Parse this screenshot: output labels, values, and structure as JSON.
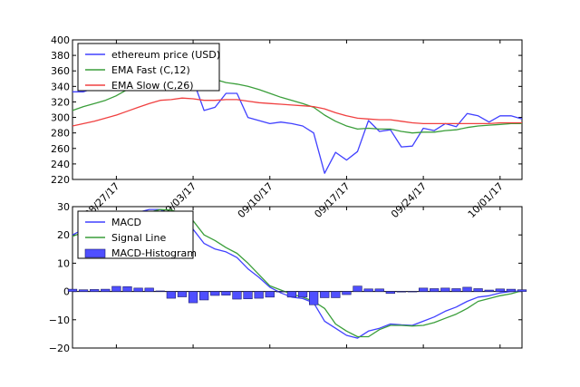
{
  "chart_data": [
    {
      "type": "line",
      "x": [
        "08/23/17",
        "08/24/17",
        "08/25/17",
        "08/26/17",
        "08/27/17",
        "08/28/17",
        "08/29/17",
        "08/30/17",
        "08/31/17",
        "09/01/17",
        "09/02/17",
        "09/03/17",
        "09/04/17",
        "09/05/17",
        "09/06/17",
        "09/07/17",
        "09/08/17",
        "09/09/17",
        "09/10/17",
        "09/11/17",
        "09/12/17",
        "09/13/17",
        "09/14/17",
        "09/15/17",
        "09/16/17",
        "09/17/17",
        "09/18/17",
        "09/19/17",
        "09/20/17",
        "09/21/17",
        "09/22/17",
        "09/23/17",
        "09/24/17",
        "09/25/17",
        "09/26/17",
        "09/27/17",
        "09/28/17",
        "09/29/17",
        "09/30/17",
        "10/01/17",
        "10/02/17",
        "10/03/17"
      ],
      "x_ticks": [
        "08/27/17",
        "09/03/17",
        "09/10/17",
        "09/17/17",
        "09/24/17",
        "10/01/17"
      ],
      "ylim": [
        220,
        400
      ],
      "y_ticks": [
        220,
        240,
        260,
        280,
        300,
        320,
        340,
        360,
        380,
        400
      ],
      "grid": false,
      "legend_position": "top-left",
      "series": [
        {
          "name": "ethereum price (USD)",
          "color": "#4040ff",
          "values": [
            333,
            333,
            338,
            345,
            348,
            352,
            360,
            372,
            383,
            382,
            378,
            348,
            309,
            313,
            331,
            331,
            300,
            296,
            292,
            294,
            292,
            289,
            280,
            228,
            255,
            245,
            256,
            296,
            282,
            284,
            262,
            263,
            286,
            283,
            292,
            288,
            305,
            302,
            294,
            302,
            302,
            298
          ]
        },
        {
          "name": "EMA Fast (C,12)",
          "color": "#3a9e3a",
          "values": [
            309,
            314,
            318,
            322,
            328,
            336,
            344,
            352,
            360,
            363,
            365,
            362,
            355,
            349,
            345,
            343,
            340,
            336,
            331,
            326,
            322,
            318,
            313,
            303,
            295,
            289,
            285,
            286,
            285,
            285,
            282,
            280,
            281,
            281,
            283,
            284,
            287,
            289,
            290,
            291,
            292,
            292
          ]
        },
        {
          "name": "EMA Slow (C,26)",
          "color": "#f04040",
          "values": [
            289,
            292,
            295,
            299,
            303,
            308,
            313,
            318,
            322,
            323,
            325,
            324,
            322,
            322,
            323,
            323,
            321,
            319,
            318,
            317,
            316,
            315,
            314,
            311,
            306,
            302,
            299,
            298,
            297,
            297,
            295,
            293,
            292,
            292,
            292,
            292,
            292,
            292,
            292,
            293,
            293,
            293
          ]
        }
      ]
    },
    {
      "type": "line",
      "ylim": [
        -20,
        30
      ],
      "y_ticks": [
        -20,
        -10,
        0,
        10,
        20,
        30
      ],
      "y_tick_labels": [
        "−20",
        "−10",
        "0",
        "10",
        "20",
        "30"
      ],
      "grid": false,
      "legend_position": "top-left",
      "series": [
        {
          "name": "MACD",
          "color": "#4040ff",
          "values": [
            20,
            22,
            23,
            24,
            25,
            26,
            28,
            29,
            29,
            27,
            25,
            22,
            17,
            15,
            14,
            12,
            8,
            5,
            1.5,
            -0.5,
            -2,
            -2.5,
            -4,
            -10.5,
            -13,
            -15.5,
            -16.5,
            -14,
            -13,
            -11.5,
            -11.8,
            -12,
            -10.5,
            -9,
            -7,
            -5.5,
            -3.5,
            -2,
            -1.5,
            -0.5,
            0,
            0.2
          ]
        },
        {
          "name": "Signal Line",
          "color": "#3a9e3a",
          "values": [
            19.5,
            21,
            22.5,
            23.5,
            24.5,
            25.5,
            27,
            28,
            29,
            28.8,
            27.5,
            25,
            20,
            18,
            15.5,
            13.5,
            10,
            6,
            2,
            0.5,
            -1,
            -2,
            -3.5,
            -6,
            -11.5,
            -14,
            -16,
            -16,
            -13.5,
            -12,
            -12,
            -12.2,
            -12,
            -11,
            -9.5,
            -8,
            -6,
            -3.5,
            -2.5,
            -1.5,
            -0.8,
            0.3
          ]
        },
        {
          "name": "MACD-Histogram",
          "color": "#4f4fff",
          "type": "bar",
          "values": [
            0.8,
            0.6,
            0.7,
            0.8,
            1.8,
            1.7,
            1.2,
            1.2,
            0.2,
            -2.4,
            -1.9,
            -4.0,
            -3.0,
            -1.4,
            -1.3,
            -2.7,
            -2.6,
            -2.4,
            -2.0,
            0.0,
            -2.0,
            -2.0,
            -4.7,
            -2.2,
            -2.2,
            -1.1,
            1.9,
            0.9,
            0.9,
            -0.7,
            -0.2,
            0.0,
            1.2,
            1.0,
            1.2,
            1.0,
            1.5,
            1.0,
            0.5,
            0.9,
            0.8,
            0.6
          ]
        }
      ]
    }
  ]
}
